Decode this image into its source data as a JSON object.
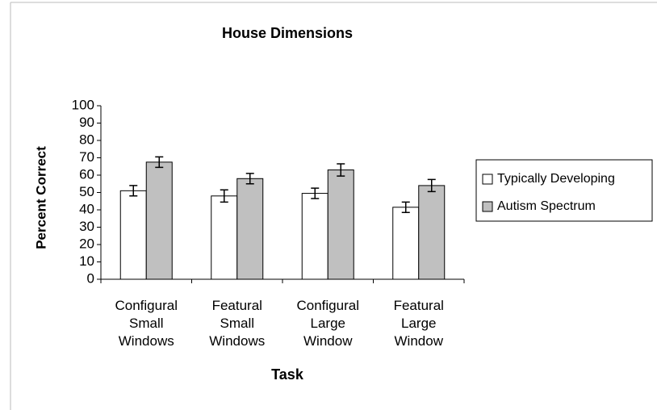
{
  "chart_data": {
    "type": "bar",
    "title": "House Dimensions",
    "x_label": "Task",
    "y_label": "Percent Correct",
    "categories": [
      "Configural Small Windows",
      "Featural Small Windows",
      "Configural Large Window",
      "Featural Large Window"
    ],
    "series": [
      {
        "name": "Typically Developing",
        "color": "#ffffff",
        "values": [
          51,
          48,
          49.5,
          41.5
        ],
        "errors": [
          3,
          3.5,
          3,
          3
        ]
      },
      {
        "name": "Autism Spectrum",
        "color": "#c0c0c0",
        "values": [
          67.5,
          58,
          63,
          54
        ],
        "errors": [
          3,
          3,
          3.5,
          3.5
        ]
      }
    ],
    "ylim": [
      0,
      100
    ],
    "yticks": [
      0,
      10,
      20,
      30,
      40,
      50,
      60,
      70,
      80,
      90,
      100
    ],
    "grid": false,
    "legend": "right"
  }
}
